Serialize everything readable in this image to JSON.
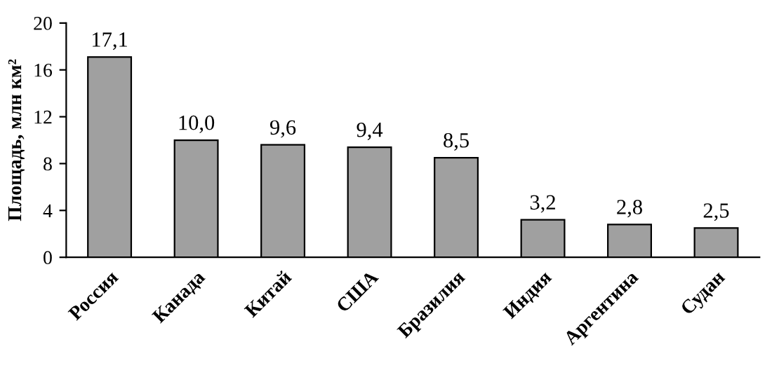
{
  "chart_data": {
    "type": "bar",
    "ylabel": "Площадь, млн км²",
    "categories": [
      "Россия",
      "Канада",
      "Китай",
      "США",
      "Бразилия",
      "Индия",
      "Аргентина",
      "Судан"
    ],
    "values": [
      17.1,
      10.0,
      9.6,
      9.4,
      8.5,
      3.2,
      2.8,
      2.5
    ],
    "value_labels": [
      "17,1",
      "10,0",
      "9,6",
      "9,4",
      "8,5",
      "3,2",
      "2,8",
      "2,5"
    ],
    "color": "#a0a0a0",
    "ylim": [
      0,
      20
    ],
    "yticks": [
      0,
      4,
      8,
      12,
      16,
      20
    ],
    "grid": false
  }
}
